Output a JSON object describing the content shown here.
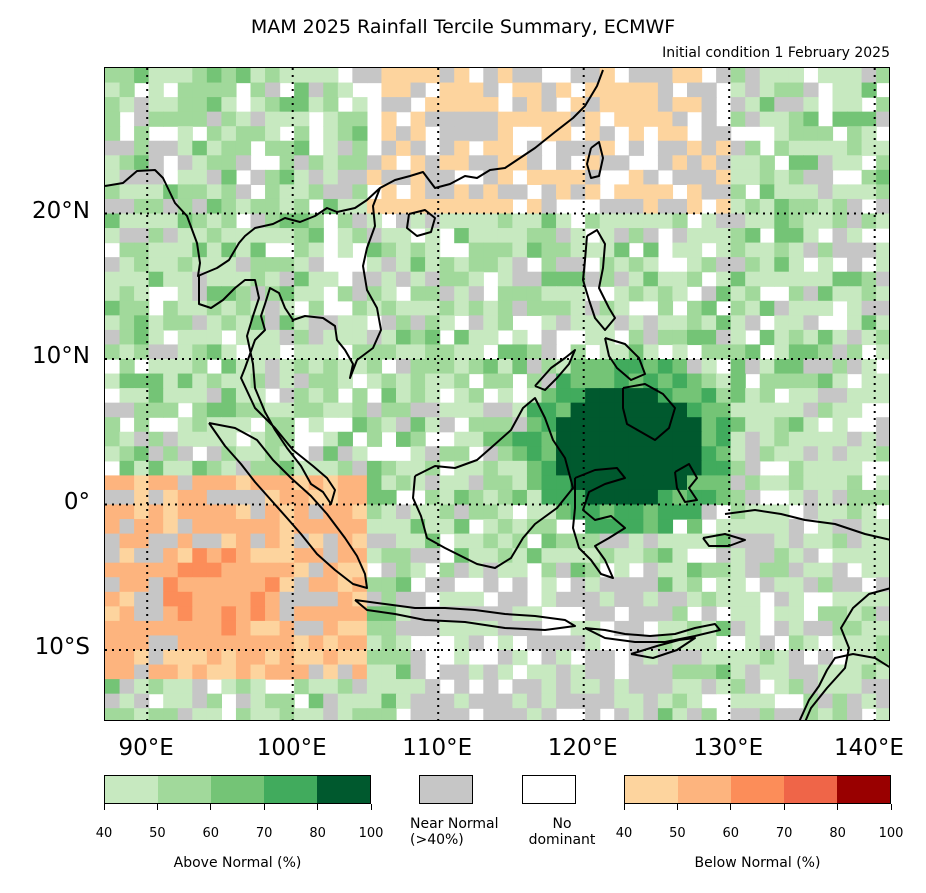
{
  "title": "MAM 2025 Rainfall Tercile Summary, ECMWF",
  "subtitle": "Initial condition 1 February 2025",
  "lat_labels": [
    "20°N",
    "10°N",
    "0°",
    "10°S"
  ],
  "lon_labels": [
    "90°E",
    "100°E",
    "110°E",
    "120°E",
    "130°E",
    "140°E"
  ],
  "legend": {
    "above": {
      "caption": "Above Normal (%)",
      "ticks": [
        "40",
        "50",
        "60",
        "70",
        "80",
        "100"
      ],
      "colors": [
        "#c7e9c0",
        "#a1d99b",
        "#74c476",
        "#41ab5d",
        "#00592e"
      ]
    },
    "near": {
      "caption": "Near Normal\n(>40%)",
      "color": "#c6c6c6"
    },
    "none": {
      "caption": "No\ndominant",
      "color": "#ffffff"
    },
    "below": {
      "caption": "Below Normal (%)",
      "ticks": [
        "40",
        "50",
        "60",
        "70",
        "80",
        "100"
      ],
      "colors": [
        "#fdd49e",
        "#fdb47e",
        "#fc8d59",
        "#ef6548",
        "#990000"
      ]
    }
  }
}
